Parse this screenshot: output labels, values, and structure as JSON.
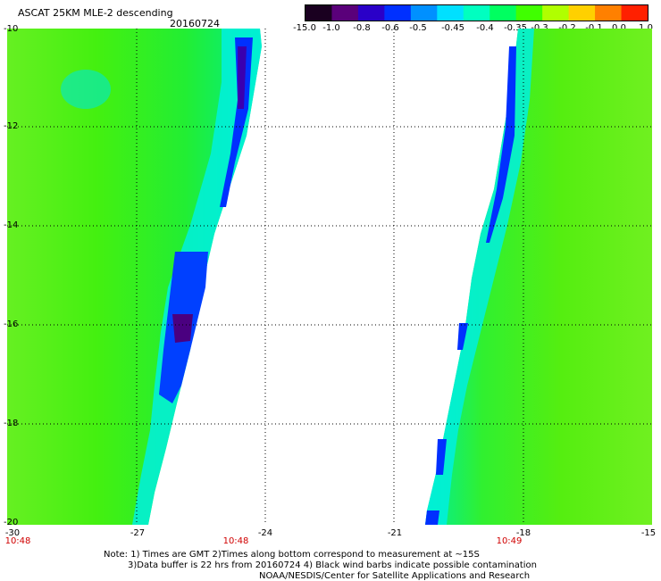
{
  "header": {
    "title": "ASCAT 25KM MLE-2 descending",
    "date": "20160724"
  },
  "colorbar": {
    "labels": [
      "-15.0",
      "-1.0",
      "-0.8",
      "-0.6",
      "-0.5",
      "-0.45",
      "-0.4",
      "-0.35",
      "-0.3",
      "-0.2",
      "-0.1",
      "0.0",
      "1.0"
    ],
    "colors": [
      "#1a0020",
      "#5a007a",
      "#2a00c8",
      "#0030ff",
      "#0090ff",
      "#00e0ff",
      "#00ffc0",
      "#00ff60",
      "#40ff00",
      "#b0ff00",
      "#ffd000",
      "#ff8000",
      "#ff2000"
    ]
  },
  "axes": {
    "y_ticks": [
      "-10",
      "-12",
      "-14",
      "-16",
      "-18",
      "-20"
    ],
    "x_ticks": [
      "-30",
      "-27",
      "-24",
      "-21",
      "-18",
      "-15"
    ]
  },
  "times": [
    "10:48",
    "10:48",
    "10:49"
  ],
  "notes": [
    "Note: 1) Times are GMT 2)Times along bottom correspond to measurement at ~15S",
    "3)Data buffer is 22 hrs from 20160724 4) Black wind barbs indicate possible contamination",
    "NOAA/NESDIS/Center for Satellite Applications and Research"
  ]
}
